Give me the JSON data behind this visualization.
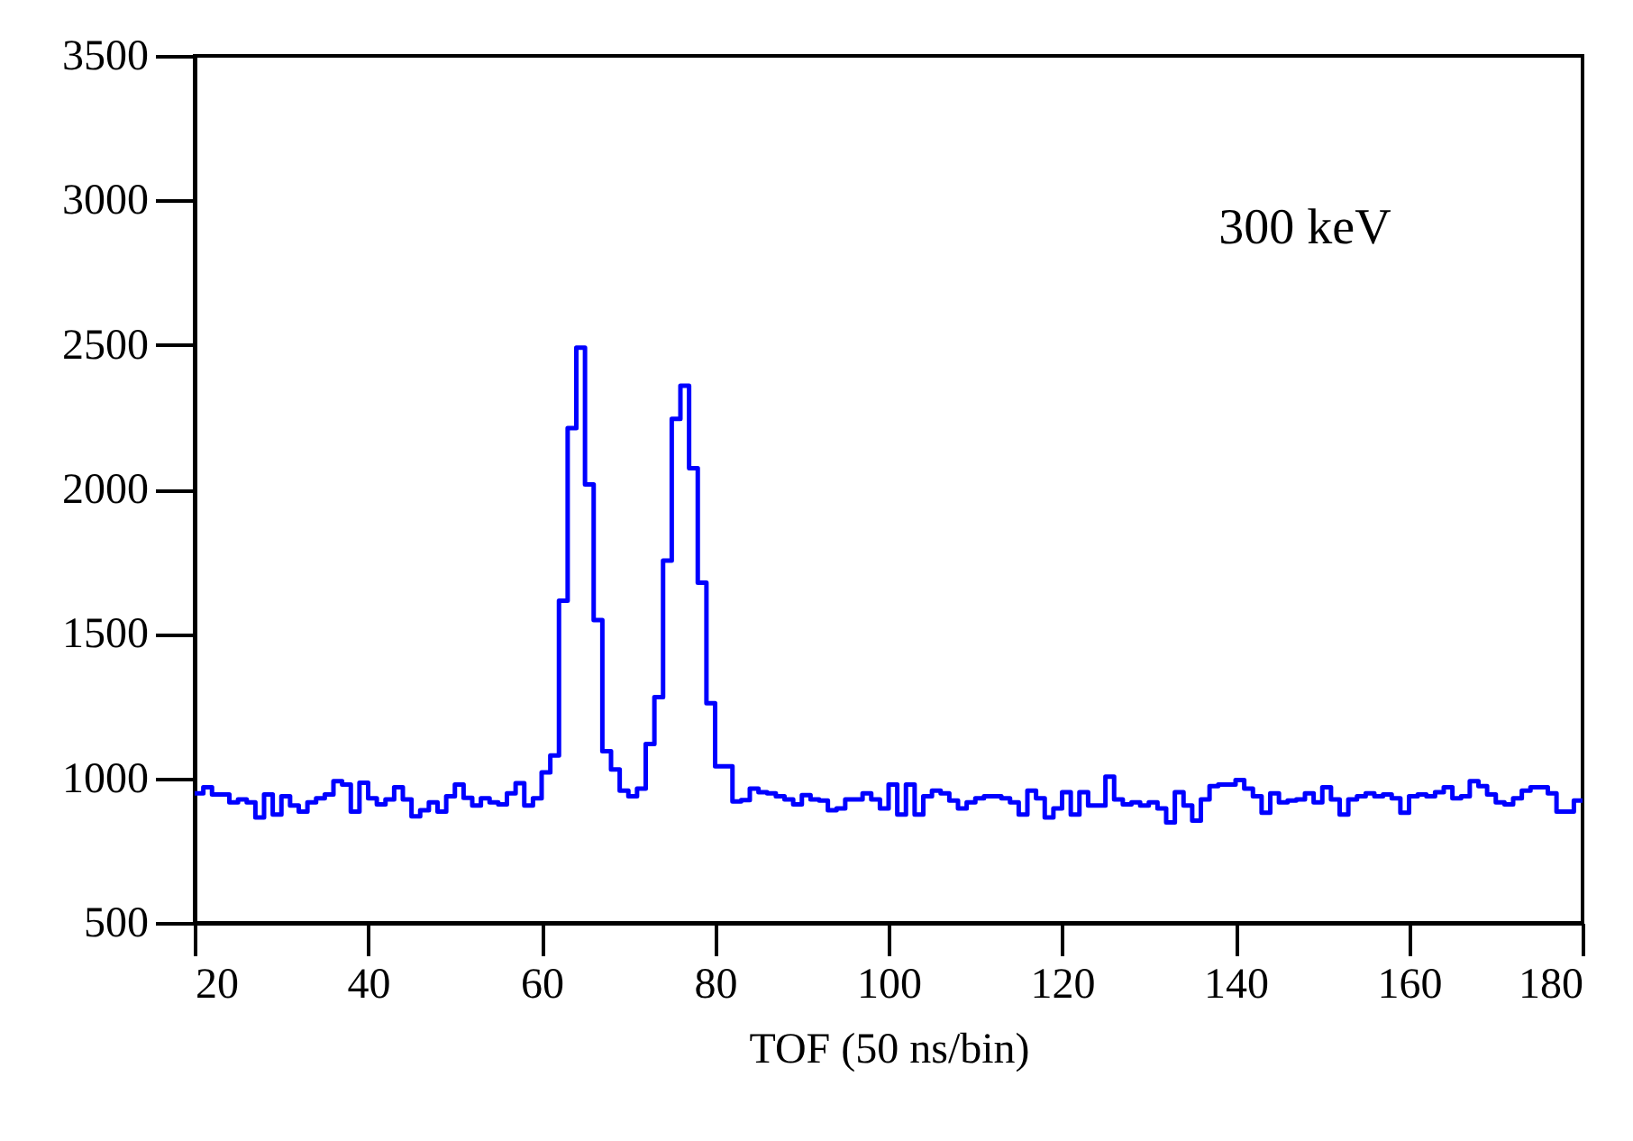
{
  "chart_data": {
    "type": "histogram",
    "xlabel": "TOF (50 ns/bin)",
    "annotations": [
      "300 keV"
    ],
    "bins": [
      20,
      21,
      22,
      23,
      24,
      25,
      26,
      27,
      28,
      29,
      30,
      31,
      32,
      33,
      34,
      35,
      36,
      37,
      38,
      39,
      40,
      41,
      42,
      43,
      44,
      45,
      46,
      47,
      48,
      49,
      50,
      51,
      52,
      53,
      54,
      55,
      56,
      57,
      58,
      59,
      60,
      61,
      62,
      63,
      64,
      65,
      66,
      67,
      68,
      69,
      70,
      71,
      72,
      73,
      74,
      75,
      76,
      77,
      78,
      79,
      80,
      81,
      82,
      83,
      84,
      85,
      86,
      87,
      88,
      89,
      90,
      91,
      92,
      93,
      94,
      95,
      96,
      97,
      98,
      99,
      100,
      101,
      102,
      103,
      104,
      105,
      106,
      107,
      108,
      109,
      110,
      111,
      112,
      113,
      114,
      115,
      116,
      117,
      118,
      119,
      120,
      121,
      122,
      123,
      124,
      125,
      126,
      127,
      128,
      129,
      130,
      131,
      132,
      133,
      134,
      135,
      136,
      137,
      138,
      139,
      140,
      141,
      142,
      143,
      144,
      145,
      146,
      147,
      148,
      149,
      150,
      151,
      152,
      153,
      154,
      155,
      156,
      157,
      158,
      159,
      160,
      161,
      162,
      163,
      164,
      165,
      166,
      167,
      168,
      169,
      170,
      171,
      172,
      173,
      174,
      175,
      176,
      177,
      178,
      179,
      180
    ],
    "values": [
      948,
      969,
      944,
      944,
      917,
      927,
      917,
      865,
      944,
      875,
      938,
      906,
      885,
      917,
      931,
      944,
      990,
      979,
      885,
      985,
      931,
      910,
      927,
      969,
      927,
      869,
      890,
      917,
      885,
      938,
      979,
      933,
      906,
      931,
      917,
      910,
      948,
      983,
      906,
      931,
      1021,
      1079,
      1615,
      2212,
      2490,
      2017,
      1548,
      1094,
      1031,
      958,
      938,
      965,
      1119,
      1281,
      1754,
      2244,
      2359,
      2073,
      1677,
      1260,
      1042,
      1042,
      920,
      925,
      965,
      952,
      948,
      938,
      927,
      910,
      942,
      927,
      923,
      890,
      896,
      927,
      927,
      948,
      927,
      896,
      979,
      875,
      979,
      875,
      938,
      958,
      948,
      923,
      896,
      917,
      931,
      938,
      938,
      931,
      917,
      875,
      958,
      931,
      865,
      896,
      952,
      875,
      952,
      906,
      906,
      1006,
      927,
      910,
      917,
      906,
      917,
      896,
      848,
      952,
      906,
      854,
      927,
      973,
      979,
      979,
      994,
      965,
      938,
      881,
      948,
      917,
      923,
      927,
      948,
      917,
      969,
      927,
      875,
      927,
      938,
      948,
      938,
      944,
      931,
      881,
      938,
      944,
      938,
      952,
      969,
      931,
      938,
      990,
      973,
      944,
      917,
      910,
      931,
      958,
      969,
      969,
      948,
      885,
      885,
      923
    ],
    "color": "#0000ff",
    "xlim": [
      20,
      180
    ],
    "xticks": [
      20,
      40,
      60,
      80,
      100,
      120,
      140,
      160,
      180
    ],
    "ylim": [
      500,
      3500
    ],
    "yticks": [
      500,
      1000,
      1500,
      2000,
      2500,
      3000,
      3500
    ],
    "grid": false
  }
}
